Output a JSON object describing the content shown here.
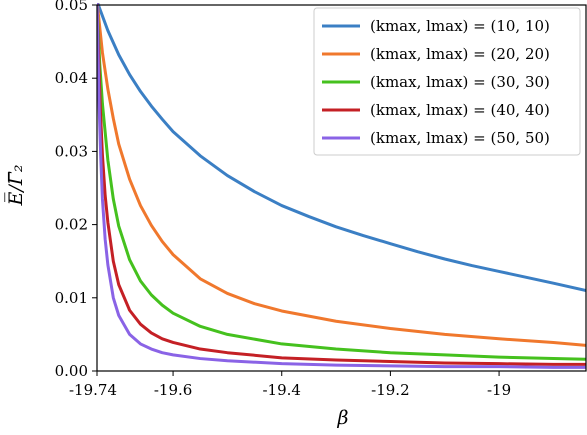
{
  "chart_data": {
    "type": "line",
    "title": "",
    "xlabel": "β",
    "ylabel": "E̅/Γ̅₂",
    "xlim": [
      -19.74,
      -18.84
    ],
    "ylim": [
      0,
      0.05
    ],
    "xticks": [
      -19.74,
      -19.6,
      -19.4,
      -19.2,
      -19.0
    ],
    "xtick_labels": [
      "-19.74",
      "-19.6",
      "-19.4",
      "-19.2",
      "-19"
    ],
    "yticks": [
      0,
      0.01,
      0.02,
      0.03,
      0.04,
      0.05
    ],
    "ytick_labels": [
      "0.00",
      "0.01",
      "0.02",
      "0.03",
      "0.04",
      "0.05"
    ],
    "grid": false,
    "legend_position": "top-right",
    "series": [
      {
        "name": "(k_max, l_max) = (10, 10)",
        "legend_label": "(kmax, lmax) = (10, 10)",
        "color": "#3b7fc4",
        "x": [
          -19.74,
          -19.72,
          -19.7,
          -19.68,
          -19.66,
          -19.64,
          -19.62,
          -19.6,
          -19.55,
          -19.5,
          -19.45,
          -19.4,
          -19.35,
          -19.3,
          -19.25,
          -19.2,
          -19.15,
          -19.1,
          -19.05,
          -19.0,
          -18.95,
          -18.9,
          -18.84
        ],
        "y": [
          0.0505,
          0.0465,
          0.0432,
          0.0405,
          0.0382,
          0.0362,
          0.0344,
          0.0327,
          0.0294,
          0.0267,
          0.0245,
          0.0226,
          0.0211,
          0.0197,
          0.0185,
          0.0174,
          0.0163,
          0.0153,
          0.0144,
          0.0136,
          0.0128,
          0.012,
          0.011
        ]
      },
      {
        "name": "(k_max, l_max) = (20, 20)",
        "legend_label": "(kmax, lmax) = (20, 20)",
        "color": "#f0782d",
        "x": [
          -19.74,
          -19.73,
          -19.72,
          -19.71,
          -19.7,
          -19.68,
          -19.66,
          -19.64,
          -19.62,
          -19.6,
          -19.55,
          -19.5,
          -19.45,
          -19.4,
          -19.3,
          -19.2,
          -19.1,
          -19.0,
          -18.9,
          -18.84
        ],
        "y": [
          0.0505,
          0.0435,
          0.0385,
          0.0345,
          0.031,
          0.0262,
          0.0226,
          0.0199,
          0.0177,
          0.0159,
          0.0126,
          0.0106,
          0.0092,
          0.0082,
          0.0068,
          0.0058,
          0.005,
          0.0044,
          0.0039,
          0.0035
        ]
      },
      {
        "name": "(k_max, l_max) = (30, 30)",
        "legend_label": "(kmax, lmax) = (30, 30)",
        "color": "#45c11e",
        "x": [
          -19.74,
          -19.735,
          -19.73,
          -19.72,
          -19.71,
          -19.7,
          -19.68,
          -19.66,
          -19.64,
          -19.62,
          -19.6,
          -19.55,
          -19.5,
          -19.4,
          -19.3,
          -19.2,
          -19.1,
          -19.0,
          -18.9,
          -18.84
        ],
        "y": [
          0.0505,
          0.042,
          0.0365,
          0.0288,
          0.0235,
          0.0198,
          0.0152,
          0.0123,
          0.0104,
          0.009,
          0.0079,
          0.0061,
          0.005,
          0.0037,
          0.003,
          0.0025,
          0.0022,
          0.0019,
          0.0017,
          0.0016
        ]
      },
      {
        "name": "(k_max, l_max) = (40, 40)",
        "legend_label": "(kmax, lmax) = (40, 40)",
        "color": "#c42025",
        "x": [
          -19.74,
          -19.737,
          -19.734,
          -19.73,
          -19.725,
          -19.72,
          -19.71,
          -19.7,
          -19.68,
          -19.66,
          -19.64,
          -19.62,
          -19.6,
          -19.55,
          -19.5,
          -19.4,
          -19.3,
          -19.2,
          -19.1,
          -19.0,
          -18.9,
          -18.84
        ],
        "y": [
          0.0505,
          0.043,
          0.036,
          0.0295,
          0.024,
          0.0203,
          0.015,
          0.0118,
          0.0083,
          0.0064,
          0.0052,
          0.0044,
          0.0039,
          0.003,
          0.0025,
          0.0018,
          0.0015,
          0.0013,
          0.0011,
          0.001,
          0.0009,
          0.0009
        ]
      },
      {
        "name": "(k_max, l_max) = (50, 50)",
        "legend_label": "(kmax, lmax) = (50, 50)",
        "color": "#8a63e6",
        "x": [
          -19.74,
          -19.738,
          -19.736,
          -19.733,
          -19.73,
          -19.725,
          -19.72,
          -19.71,
          -19.7,
          -19.68,
          -19.66,
          -19.64,
          -19.62,
          -19.6,
          -19.55,
          -19.5,
          -19.4,
          -19.3,
          -19.2,
          -19.1,
          -19.0,
          -18.9,
          -18.84
        ],
        "y": [
          0.0505,
          0.043,
          0.036,
          0.029,
          0.0235,
          0.018,
          0.0145,
          0.01,
          0.0076,
          0.005,
          0.0037,
          0.003,
          0.0025,
          0.0022,
          0.0017,
          0.0014,
          0.001,
          0.0008,
          0.0007,
          0.0006,
          0.0006,
          0.0005,
          0.0005
        ]
      }
    ]
  }
}
